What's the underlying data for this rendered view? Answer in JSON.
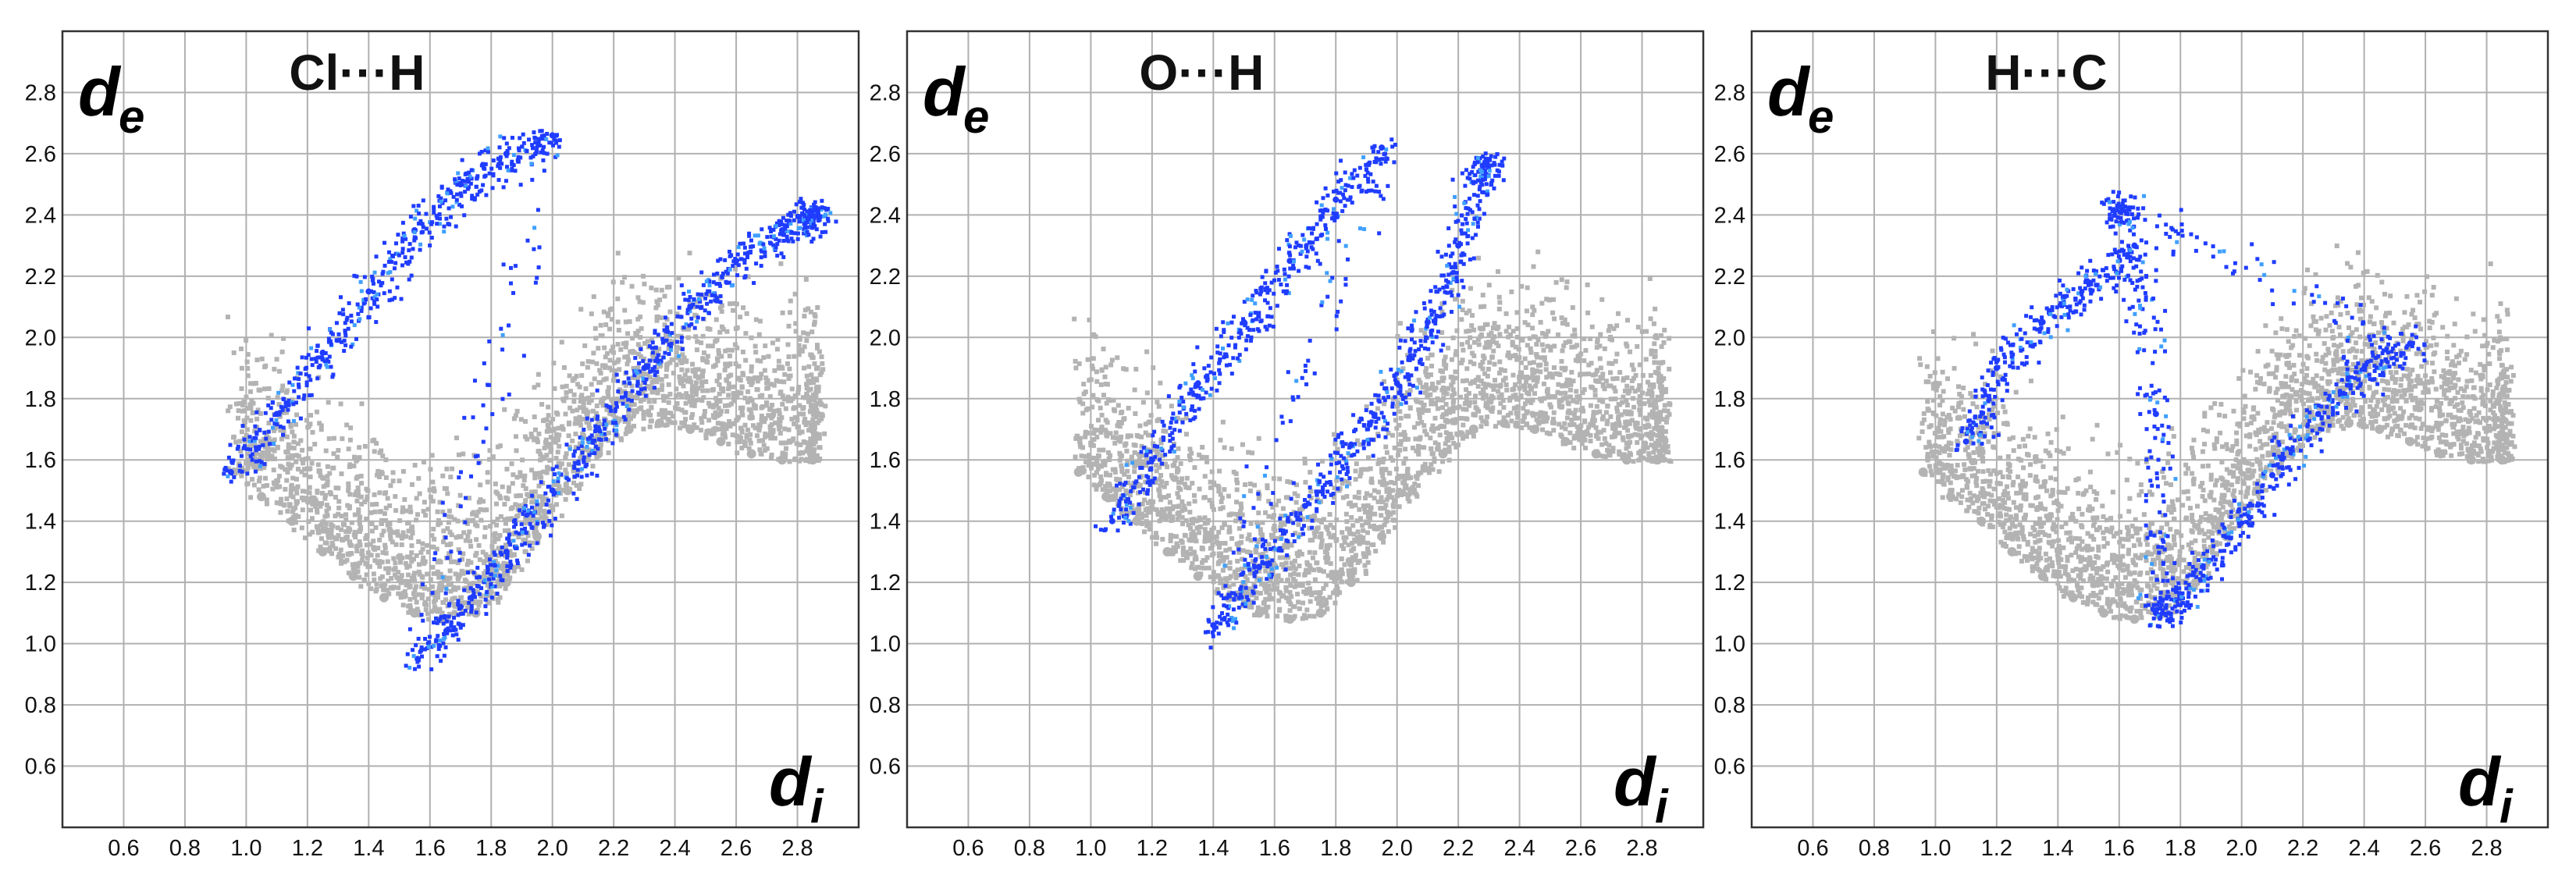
{
  "colors": {
    "background_points": "#b3b3b3",
    "highlight_points": "#1f3cff",
    "highlight_core": "#3fa0ff",
    "grid": "#b0b0b0",
    "frame": "#333333"
  },
  "chart_data": [
    {
      "type": "scatter",
      "title": "Cl···H",
      "xlabel": "d",
      "xlabel_sub": "i",
      "ylabel": "d",
      "ylabel_sub": "e",
      "xlim": [
        0.4,
        3.0
      ],
      "ylim": [
        0.4,
        3.0
      ],
      "x_ticks": [
        "0.6",
        "0.8",
        "1.0",
        "1.2",
        "1.4",
        "1.6",
        "1.8",
        "2.0",
        "2.2",
        "2.4",
        "2.6",
        "2.8"
      ],
      "y_ticks": [
        "0.6",
        "0.8",
        "1.0",
        "1.2",
        "1.4",
        "1.6",
        "1.8",
        "2.0",
        "2.2",
        "2.4",
        "2.6",
        "2.8"
      ],
      "grid": true,
      "series": [
        {
          "role": "all-contacts",
          "color": "#b3b3b3",
          "x": [
            0.96,
            1.05,
            1.15,
            1.25,
            1.35,
            1.45,
            1.55,
            1.65,
            1.75,
            1.85,
            1.95,
            2.05,
            2.15,
            2.25,
            2.35,
            2.45,
            2.55,
            2.65,
            2.75,
            2.85
          ],
          "y": [
            1.56,
            1.48,
            1.4,
            1.3,
            1.22,
            1.15,
            1.1,
            1.08,
            1.1,
            1.2,
            1.35,
            1.5,
            1.62,
            1.7,
            1.72,
            1.7,
            1.66,
            1.62,
            1.6,
            1.6
          ]
        },
        {
          "role": "Cl···H",
          "color": "#1f3cff",
          "x": [
            0.95,
            1.1,
            1.25,
            1.4,
            1.55,
            1.7,
            1.85,
            2.0,
            1.56,
            1.7,
            1.85,
            2.0,
            2.15,
            2.3,
            2.45,
            2.6,
            2.75,
            2.85
          ],
          "y": [
            1.56,
            1.75,
            1.95,
            2.15,
            2.35,
            2.5,
            2.6,
            2.66,
            0.95,
            1.12,
            1.3,
            1.5,
            1.7,
            1.9,
            2.1,
            2.25,
            2.35,
            2.4
          ]
        }
      ]
    },
    {
      "type": "scatter",
      "title": "O···H",
      "xlabel": "d",
      "xlabel_sub": "i",
      "ylabel": "d",
      "ylabel_sub": "e",
      "xlim": [
        0.4,
        3.0
      ],
      "ylim": [
        0.4,
        3.0
      ],
      "x_ticks": [
        "0.6",
        "0.8",
        "1.0",
        "1.2",
        "1.4",
        "1.6",
        "1.8",
        "2.0",
        "2.2",
        "2.4",
        "2.6",
        "2.8"
      ],
      "y_ticks": [
        "0.6",
        "0.8",
        "1.0",
        "1.2",
        "1.4",
        "1.6",
        "1.8",
        "2.0",
        "2.2",
        "2.4",
        "2.6",
        "2.8"
      ],
      "grid": true,
      "series": [
        {
          "role": "all-contacts",
          "color": "#b3b3b3",
          "x": [
            0.96,
            1.05,
            1.15,
            1.25,
            1.35,
            1.45,
            1.55,
            1.65,
            1.75,
            1.85,
            1.95,
            2.05,
            2.15,
            2.25,
            2.35,
            2.45,
            2.55,
            2.65,
            2.75,
            2.85
          ],
          "y": [
            1.56,
            1.48,
            1.4,
            1.3,
            1.22,
            1.15,
            1.1,
            1.08,
            1.1,
            1.2,
            1.35,
            1.5,
            1.62,
            1.7,
            1.72,
            1.7,
            1.66,
            1.62,
            1.6,
            1.6
          ]
        },
        {
          "role": "O···H",
          "color": "#1f3cff",
          "x": [
            1.07,
            1.2,
            1.35,
            1.5,
            1.65,
            1.8,
            1.95,
            1.4,
            1.55,
            1.7,
            1.85,
            2.0,
            2.1,
            2.2,
            2.28
          ],
          "y": [
            1.4,
            1.6,
            1.85,
            2.05,
            2.25,
            2.45,
            2.62,
            1.06,
            1.25,
            1.45,
            1.65,
            1.85,
            2.05,
            2.3,
            2.56
          ]
        }
      ]
    },
    {
      "type": "scatter",
      "title": "H···C",
      "xlabel": "d",
      "xlabel_sub": "i",
      "ylabel": "d",
      "ylabel_sub": "e",
      "xlim": [
        0.4,
        3.0
      ],
      "ylim": [
        0.4,
        3.0
      ],
      "x_ticks": [
        "0.6",
        "0.8",
        "1.0",
        "1.2",
        "1.4",
        "1.6",
        "1.8",
        "2.0",
        "2.2",
        "2.4",
        "2.6",
        "2.8"
      ],
      "y_ticks": [
        "0.6",
        "0.8",
        "1.0",
        "1.2",
        "1.4",
        "1.6",
        "1.8",
        "2.0",
        "2.2",
        "2.4",
        "2.6",
        "2.8"
      ],
      "grid": true,
      "series": [
        {
          "role": "all-contacts",
          "color": "#b3b3b3",
          "x": [
            0.96,
            1.05,
            1.15,
            1.25,
            1.35,
            1.45,
            1.55,
            1.65,
            1.75,
            1.85,
            1.95,
            2.05,
            2.15,
            2.25,
            2.35,
            2.45,
            2.55,
            2.65,
            2.75,
            2.85
          ],
          "y": [
            1.56,
            1.48,
            1.4,
            1.3,
            1.22,
            1.15,
            1.1,
            1.08,
            1.1,
            1.2,
            1.35,
            1.5,
            1.62,
            1.7,
            1.72,
            1.7,
            1.66,
            1.62,
            1.6,
            1.6
          ]
        },
        {
          "role": "H···C",
          "color": "#1f3cff",
          "x": [
            1.1,
            1.2,
            1.35,
            1.5,
            1.65,
            1.72,
            1.72,
            1.8,
            1.95,
            2.1,
            2.25,
            2.4,
            2.55,
            1.6
          ],
          "y": [
            1.66,
            1.9,
            2.05,
            2.18,
            2.3,
            1.75,
            1.1,
            1.15,
            1.35,
            1.55,
            1.75,
            1.9,
            1.98,
            2.42
          ]
        }
      ]
    }
  ]
}
